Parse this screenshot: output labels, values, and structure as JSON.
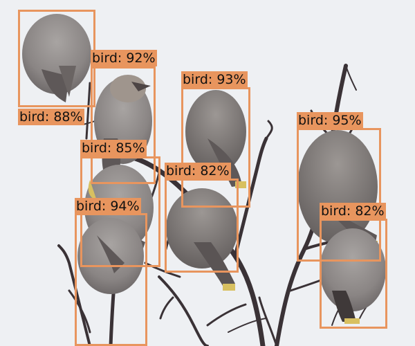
{
  "image": {
    "description_colors": {
      "background": "#eef0f3",
      "branch": "#3a3236",
      "bird_body": "#8f8b8a",
      "bird_dark": "#5e5858",
      "box": "#e8955e"
    }
  },
  "detections": [
    {
      "label": "bird: 88%"
    },
    {
      "label": "bird: 92%"
    },
    {
      "label": "bird: 93%"
    },
    {
      "label": "bird: 85%"
    },
    {
      "label": "bird: 82%"
    },
    {
      "label": "bird: 94%"
    },
    {
      "label": "bird: 95%"
    },
    {
      "label": "bird: 82%"
    }
  ]
}
